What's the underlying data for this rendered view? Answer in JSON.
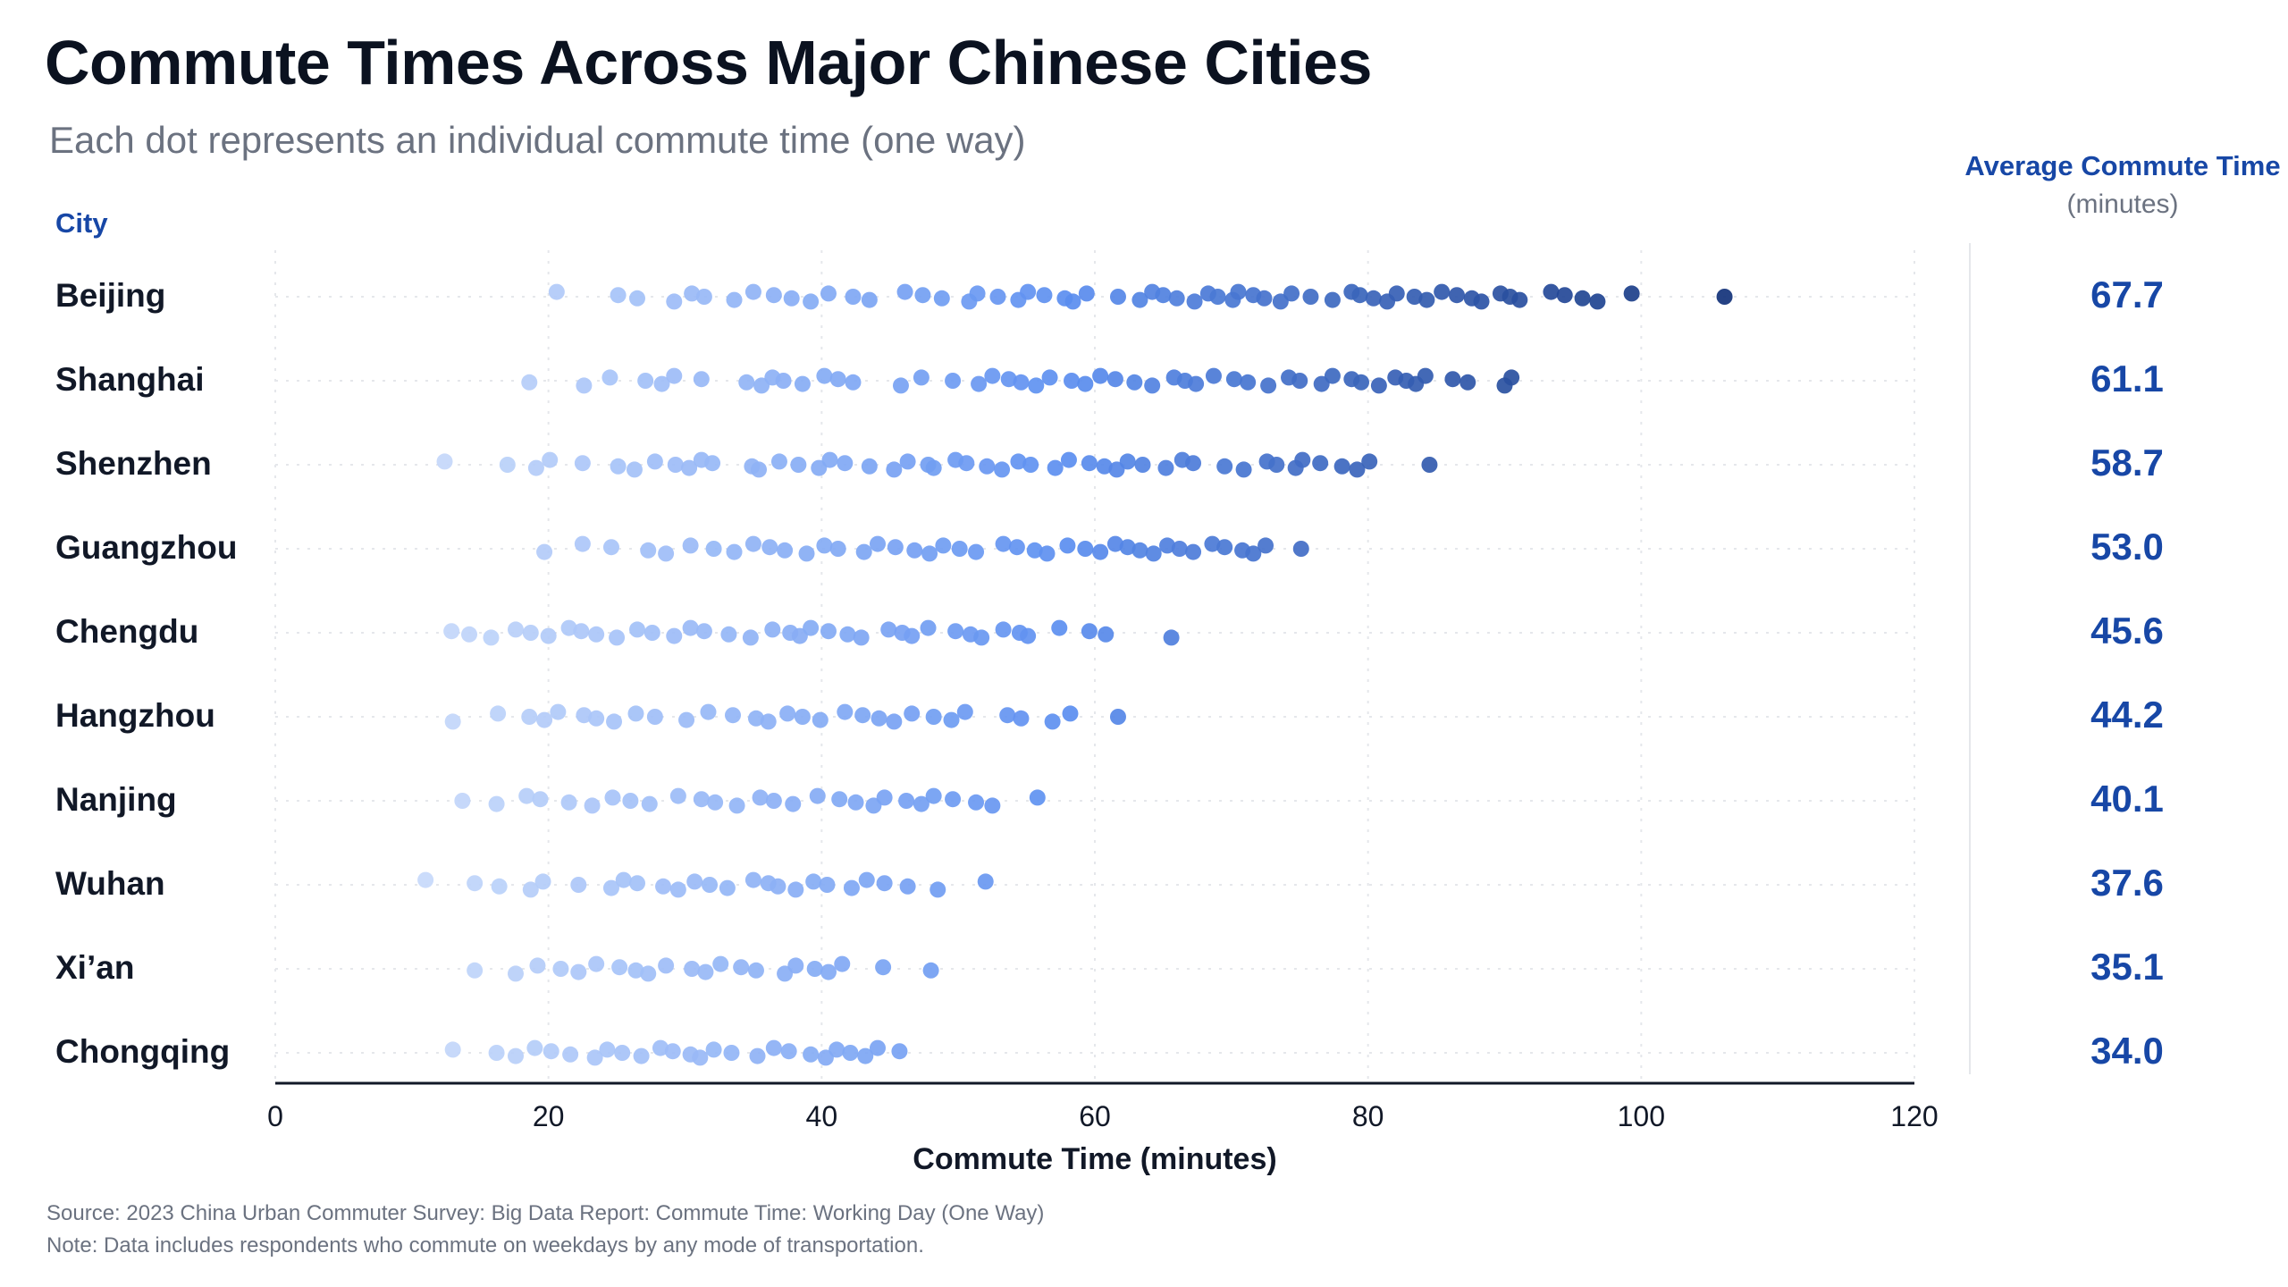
{
  "title": "Commute Times Across Major Chinese Cities",
  "subtitle": "Each dot represents an individual commute time (one way)",
  "city_header": "City",
  "avg_header": {
    "title": "Average Commute Time",
    "units": "(minutes)"
  },
  "footer": {
    "source": "Source: 2023 China Urban Commuter Survey: Big Data Report: Commute Time: Working Day (One Way)",
    "note": "Note: Data includes respondents who commute on weekdays by any mode of transportation."
  },
  "colors": {
    "light": "#c9dbfb",
    "mid": "#5b8ef0",
    "dark": "#12327a",
    "accent": "#1747a6",
    "axis": "#111827",
    "grid": "#e5e7eb"
  },
  "chart_data": {
    "type": "scatter",
    "xlabel": "Commute Time (minutes)",
    "xlim": [
      0,
      120
    ],
    "xticks": [
      0,
      20,
      40,
      60,
      80,
      100,
      120
    ],
    "grid": true,
    "categories": [
      "Beijing",
      "Shanghai",
      "Shenzhen",
      "Guangzhou",
      "Chengdu",
      "Hangzhou",
      "Nanjing",
      "Wuhan",
      "Xi’an",
      "Chongqing"
    ],
    "averages": [
      "67.7",
      "61.1",
      "58.7",
      "53.0",
      "45.6",
      "44.2",
      "40.1",
      "37.6",
      "35.1",
      "34.0"
    ],
    "points": [
      [
        20.6,
        25.1,
        26.5,
        29.2,
        30.5,
        31.4,
        33.6,
        35,
        36.5,
        37.8,
        39.2,
        40.5,
        42.3,
        43.5,
        46.1,
        47.4,
        48.8,
        50.8,
        51.4,
        52.9,
        54.4,
        55.1,
        56.3,
        57.8,
        58.4,
        59.4,
        61.7,
        63.3,
        64.2,
        65,
        66,
        67.3,
        68.3,
        69,
        70.1,
        70.5,
        71.6,
        72.4,
        73.6,
        74.4,
        75.8,
        77.4,
        78.8,
        79.4,
        80.4,
        81.4,
        82.1,
        83.4,
        84.3,
        85.4,
        86.5,
        87.6,
        88.3,
        89.7,
        90.4,
        91.1,
        93.4,
        94.4,
        95.7,
        96.8,
        99.3,
        106.1
      ],
      [
        18.6,
        22.6,
        24.5,
        27.1,
        28.3,
        29.2,
        31.2,
        34.5,
        35.6,
        36.4,
        37.2,
        38.6,
        40.2,
        41.2,
        42.3,
        45.8,
        47.3,
        49.6,
        51.5,
        52.5,
        53.7,
        54.6,
        55.7,
        56.7,
        58.3,
        59.3,
        60.4,
        61.5,
        62.9,
        64.2,
        65.8,
        66.6,
        67.4,
        68.7,
        70.2,
        71.2,
        72.7,
        74.2,
        75,
        76.6,
        77.4,
        78.8,
        79.5,
        80.8,
        82,
        82.8,
        83.5,
        84.2,
        86.2,
        87.3,
        90,
        90.5
      ],
      [
        12.4,
        17,
        19.1,
        20.1,
        22.5,
        25.1,
        26.3,
        27.8,
        29.3,
        30.3,
        31.2,
        32,
        34.9,
        35.4,
        36.9,
        38.3,
        39.8,
        40.6,
        41.7,
        43.5,
        45.3,
        46.3,
        47.8,
        48.2,
        49.8,
        50.6,
        52.1,
        53.2,
        54.4,
        55.3,
        57.1,
        58.1,
        59.6,
        60.7,
        61.6,
        62.4,
        63.5,
        65.2,
        66.4,
        67.2,
        69.5,
        70.9,
        72.6,
        73.3,
        74.7,
        75.2,
        76.5,
        78.1,
        79.2,
        80.1,
        84.5
      ],
      [
        19.7,
        22.5,
        24.6,
        27.3,
        28.6,
        30.4,
        32.1,
        33.6,
        35,
        36.2,
        37.3,
        38.9,
        40.2,
        41.2,
        43.1,
        44.1,
        45.4,
        46.8,
        47.9,
        48.9,
        50.1,
        51.3,
        53.3,
        54.3,
        55.6,
        56.5,
        58,
        59.3,
        60.4,
        61.5,
        62.4,
        63.3,
        64.3,
        65.3,
        66.2,
        67.2,
        68.6,
        69.5,
        70.8,
        71.6,
        72.5,
        75.1
      ],
      [
        12.9,
        14.2,
        15.8,
        17.6,
        18.7,
        20,
        21.5,
        22.4,
        23.5,
        25,
        26.5,
        27.6,
        29.2,
        30.4,
        31.4,
        33.2,
        34.8,
        36.4,
        37.7,
        38.4,
        39.2,
        40.5,
        41.9,
        42.9,
        44.9,
        45.9,
        46.6,
        47.8,
        49.8,
        50.9,
        51.7,
        53.3,
        54.5,
        55.1,
        57.4,
        59.6,
        60.8,
        65.6
      ],
      [
        13,
        16.3,
        18.6,
        19.7,
        20.7,
        22.6,
        23.5,
        24.8,
        26.4,
        27.8,
        30.1,
        31.7,
        33.5,
        35.2,
        36.1,
        37.5,
        38.6,
        39.9,
        41.7,
        43,
        44.2,
        45.3,
        46.6,
        48.2,
        49.5,
        50.5,
        53.6,
        54.6,
        56.9,
        58.2,
        61.7
      ],
      [
        13.7,
        16.2,
        18.4,
        19.4,
        21.5,
        23.2,
        24.7,
        26,
        27.4,
        29.5,
        31.2,
        32.2,
        33.8,
        35.5,
        36.5,
        37.9,
        39.7,
        41.3,
        42.5,
        43.8,
        44.6,
        46.2,
        47.3,
        48.2,
        49.6,
        51.3,
        52.5,
        55.8
      ],
      [
        11,
        14.6,
        16.4,
        18.7,
        19.6,
        22.2,
        24.6,
        25.5,
        26.5,
        28.4,
        29.5,
        30.7,
        31.8,
        33.1,
        35,
        36.1,
        36.8,
        38.1,
        39.4,
        40.4,
        42.2,
        43.3,
        44.6,
        46.3,
        48.5,
        52
      ],
      [
        14.6,
        17.6,
        19.2,
        20.9,
        22.2,
        23.5,
        25.2,
        26.4,
        27.3,
        28.6,
        30.5,
        31.5,
        32.6,
        34.1,
        35.2,
        37.3,
        38.1,
        39.5,
        40.5,
        41.5,
        44.5,
        48
      ],
      [
        13,
        16.2,
        17.6,
        19,
        20.2,
        21.6,
        23.4,
        24.3,
        25.4,
        26.8,
        28.2,
        29.1,
        30.4,
        31.1,
        32.1,
        33.4,
        35.3,
        36.5,
        37.6,
        39.2,
        40.3,
        41.1,
        42.1,
        43.2,
        44.1,
        45.7
      ]
    ]
  }
}
